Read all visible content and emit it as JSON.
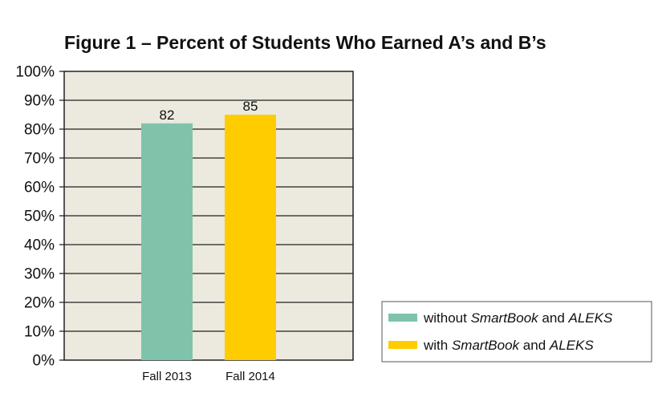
{
  "chart_data": {
    "type": "bar",
    "title": "Figure 1 – Percent of Students Who Earned A’s and B’s",
    "categories": [
      "Fall 2013",
      "Fall 2014"
    ],
    "values": [
      82,
      85
    ],
    "data_labels": [
      "82",
      "85"
    ],
    "colors": [
      "#7fc3aa",
      "#ffcc00"
    ],
    "ylim": [
      0,
      100
    ],
    "yticks": [
      0,
      10,
      20,
      30,
      40,
      50,
      60,
      70,
      80,
      90,
      100
    ],
    "ytick_labels": [
      "0%",
      "10%",
      "20%",
      "30%",
      "40%",
      "50%",
      "60%",
      "70%",
      "80%",
      "90%",
      "100%"
    ],
    "grid": true,
    "plot_background": "#ece9df",
    "legend_position": "bottom-right",
    "legend": [
      {
        "parts": [
          {
            "text": "without ",
            "italic": false
          },
          {
            "text": "SmartBook",
            "italic": true
          },
          {
            "text": " and ",
            "italic": false
          },
          {
            "text": "ALEKS",
            "italic": true
          }
        ],
        "color": "#7fc3aa"
      },
      {
        "parts": [
          {
            "text": "with ",
            "italic": false
          },
          {
            "text": "SmartBook",
            "italic": true
          },
          {
            "text": " and ",
            "italic": false
          },
          {
            "text": "ALEKS",
            "italic": true
          }
        ],
        "color": "#ffcc00"
      }
    ]
  }
}
